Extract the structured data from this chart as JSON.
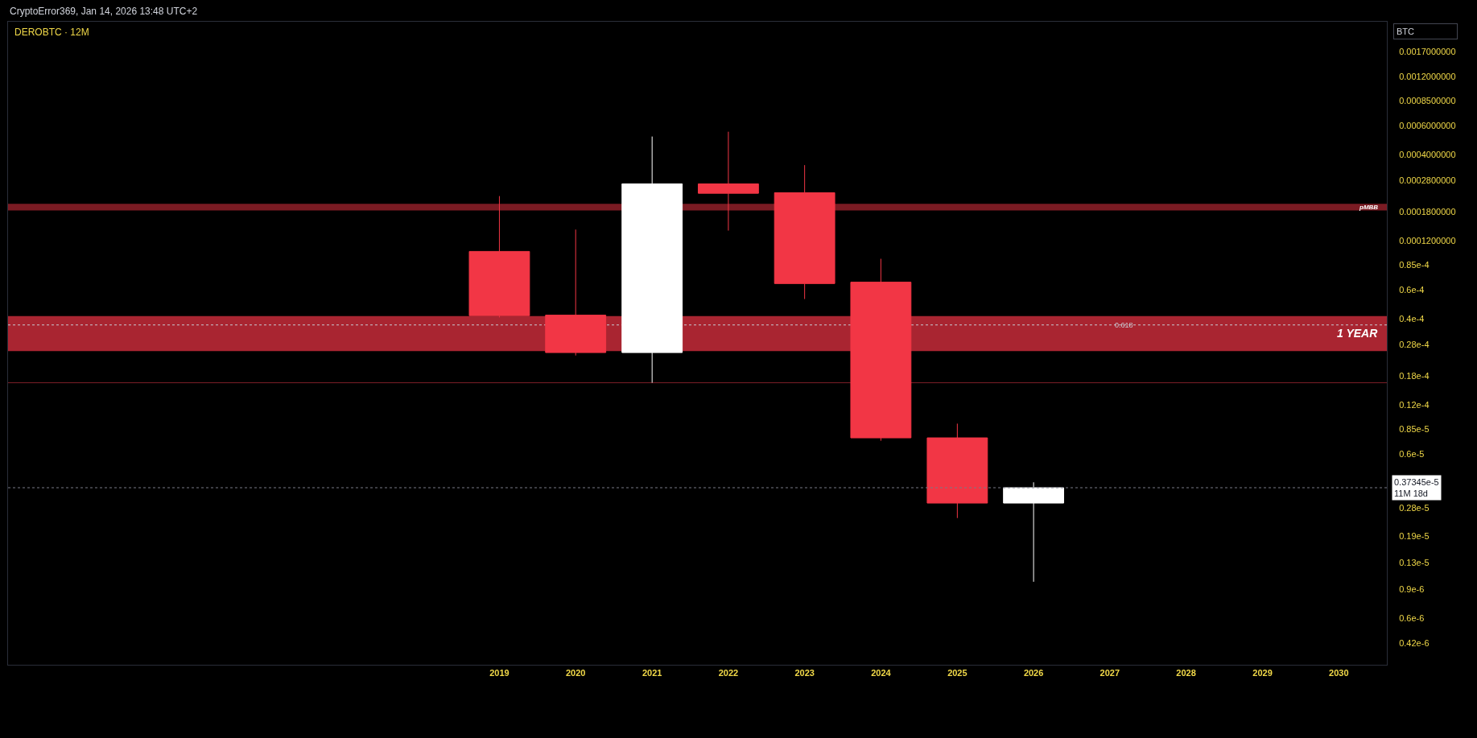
{
  "chart_data": {
    "type": "candlestick",
    "title": "DEROBTC · 12M",
    "ylabel": "BTC",
    "annotations": [
      "CryptoError369, Jan 14, 2026 13:48 UTC+2",
      {
        "text": "0.618",
        "x": "2027",
        "y": 3.67e-05
      }
    ],
    "x": [
      "2019",
      "2020",
      "2021",
      "2022",
      "2023",
      "2024",
      "2025",
      "2026"
    ],
    "ohlc": [
      [
        0.000103,
        0.000224,
        4.08e-05,
        4.18e-05
      ],
      [
        4.21e-05,
        0.00014,
        2.39e-05,
        2.49e-05
      ],
      [
        2.49e-05,
        0.000517,
        1.63e-05,
        0.000266
      ],
      [
        0.000266,
        0.000553,
        0.000138,
        0.000233
      ],
      [
        0.000235,
        0.000346,
        5.28e-05,
        6.56e-05
      ],
      [
        6.69e-05,
        9.29e-05,
        7.22e-06,
        7.52e-06
      ],
      [
        7.52e-06,
        9.18e-06,
        2.44e-06,
        3.01e-06
      ],
      [
        3.01e-06,
        4.03e-06,
        9.97e-07,
        3.7345e-06
      ]
    ],
    "colors": [
      "#f23645",
      "#f23645",
      "#ffffff",
      "#f23645",
      "#f23645",
      "#f23645",
      "#f23645",
      "#ffffff"
    ],
    "log": "y",
    "xlim": [
      "2012-07-24",
      "2030-08-19"
    ],
    "xticks": [
      "2019",
      "2020",
      "2021",
      "2022",
      "2023",
      "2024",
      "2025",
      "2026",
      "2027",
      "2028",
      "2029",
      "2030"
    ],
    "ylim": [
      3.11e-07,
      0.00259
    ],
    "yticks": [
      {
        "value": 0.0017,
        "label": "0.0017000000"
      },
      {
        "value": 0.0012,
        "label": "0.0012000000"
      },
      {
        "value": 0.00085,
        "label": "0.0008500000"
      },
      {
        "value": 0.0006,
        "label": "0.0006000000"
      },
      {
        "value": 0.0004,
        "label": "0.0004000000"
      },
      {
        "value": 0.00028,
        "label": "0.0002800000"
      },
      {
        "value": 0.00018,
        "label": "0.0001800000"
      },
      {
        "value": 0.00012,
        "label": "0.0001200000"
      },
      {
        "value": 8.5e-05,
        "label": "0.85e-4"
      },
      {
        "value": 6e-05,
        "label": "0.6e-4"
      },
      {
        "value": 4e-05,
        "label": "0.4e-4"
      },
      {
        "value": 2.8e-05,
        "label": "0.28e-4"
      },
      {
        "value": 1.8e-05,
        "label": "0.18e-4"
      },
      {
        "value": 1.2e-05,
        "label": "0.12e-4"
      },
      {
        "value": 8.5e-06,
        "label": "0.85e-5"
      },
      {
        "value": 6e-06,
        "label": "0.6e-5"
      },
      {
        "value": 2.8e-06,
        "label": "0.28e-5"
      },
      {
        "value": 1.9e-06,
        "label": "0.19e-5"
      },
      {
        "value": 1.3e-06,
        "label": "0.13e-5"
      },
      {
        "value": 9e-07,
        "label": "0.9e-6"
      },
      {
        "value": 6e-07,
        "label": "0.6e-6"
      },
      {
        "value": 4.2e-07,
        "label": "0.42e-6"
      }
    ],
    "ref_lines": [
      {
        "axis": "y",
        "value": 1.63e-05,
        "color": "#7d1f28"
      },
      {
        "axis": "y",
        "value": 3.67e-05,
        "line_style": "dotted",
        "color": "#c8cad2"
      },
      {
        "axis": "y",
        "value": 3.7345e-06,
        "label": "0.37345e-5\n11M 18d",
        "line_style": "dotted",
        "color": "#787b86"
      }
    ],
    "bands": [
      {
        "axis": "y",
        "from": 2.54e-05,
        "to": 4.16e-05,
        "label": "1 YEAR",
        "color": "#a92531"
      },
      {
        "axis": "y",
        "from": 0.000183,
        "to": 0.000201,
        "label": "pMBB",
        "color": "#7a1b23"
      }
    ],
    "grid": false
  }
}
